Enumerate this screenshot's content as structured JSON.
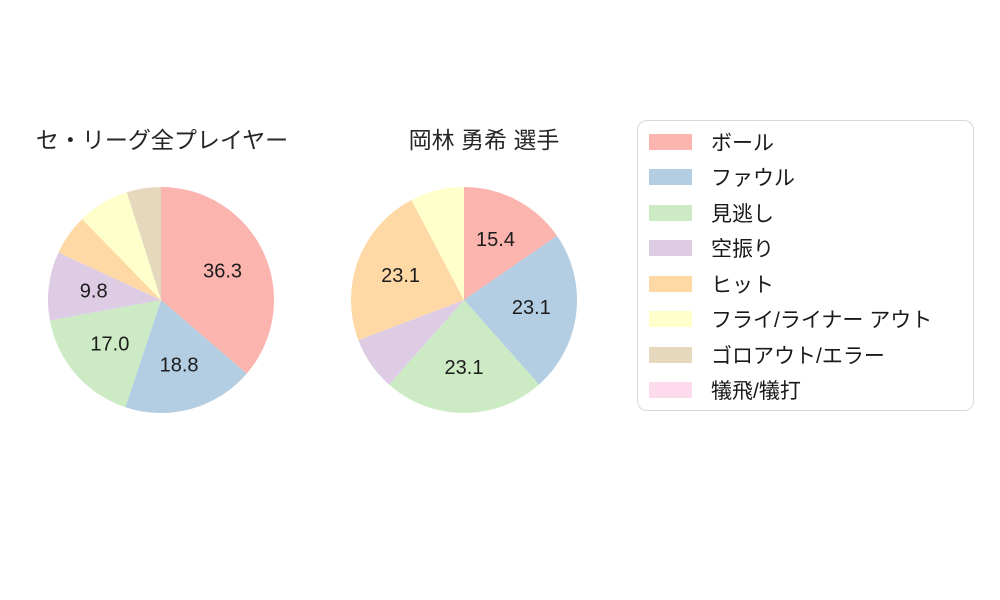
{
  "page": {
    "background": "#ffffff"
  },
  "chart_data": [
    {
      "type": "pie",
      "title": "セ・リーグ全プレイヤー",
      "start_angle_deg": 90,
      "direction": "clockwise",
      "label_distance": 0.6,
      "categories": [
        "ボール",
        "ファウル",
        "見逃し",
        "空振り",
        "ヒット",
        "フライ/ライナー アウト",
        "ゴロアウト/エラー",
        "犠飛/犠打"
      ],
      "values": [
        36.3,
        18.8,
        17.0,
        9.8,
        5.8,
        7.4,
        4.9,
        0
      ],
      "value_labels": [
        "36.3",
        "18.8",
        "17.0",
        "9.8",
        "",
        "",
        "",
        ""
      ]
    },
    {
      "type": "pie",
      "title": "岡林 勇希  選手",
      "start_angle_deg": 90,
      "direction": "clockwise",
      "label_distance": 0.6,
      "categories": [
        "ボール",
        "ファウル",
        "見逃し",
        "空振り",
        "ヒット",
        "フライ/ライナー アウト",
        "ゴロアウト/エラー",
        "犠飛/犠打"
      ],
      "values": [
        15.4,
        23.1,
        23.1,
        7.7,
        23.1,
        7.7,
        0,
        0
      ],
      "value_labels": [
        "15.4",
        "23.1",
        "23.1",
        "",
        "23.1",
        "",
        "",
        ""
      ]
    }
  ],
  "legend": {
    "position": "right",
    "entries": [
      {
        "label": "ボール",
        "color": "#fbb4ae"
      },
      {
        "label": "ファウル",
        "color": "#b3cde3"
      },
      {
        "label": "見逃し",
        "color": "#ccebc5"
      },
      {
        "label": "空振り",
        "color": "#decbe4"
      },
      {
        "label": "ヒット",
        "color": "#fed9a6"
      },
      {
        "label": "フライ/ライナー アウト",
        "color": "#ffffcc"
      },
      {
        "label": "ゴロアウト/エラー",
        "color": "#e5d8bd"
      },
      {
        "label": "犠飛/犠打",
        "color": "#fddaec"
      }
    ]
  },
  "style": {
    "title_color": "#262626",
    "value_label_color": "#1c1c1c",
    "legend_border_color": "#d8d8d8"
  }
}
